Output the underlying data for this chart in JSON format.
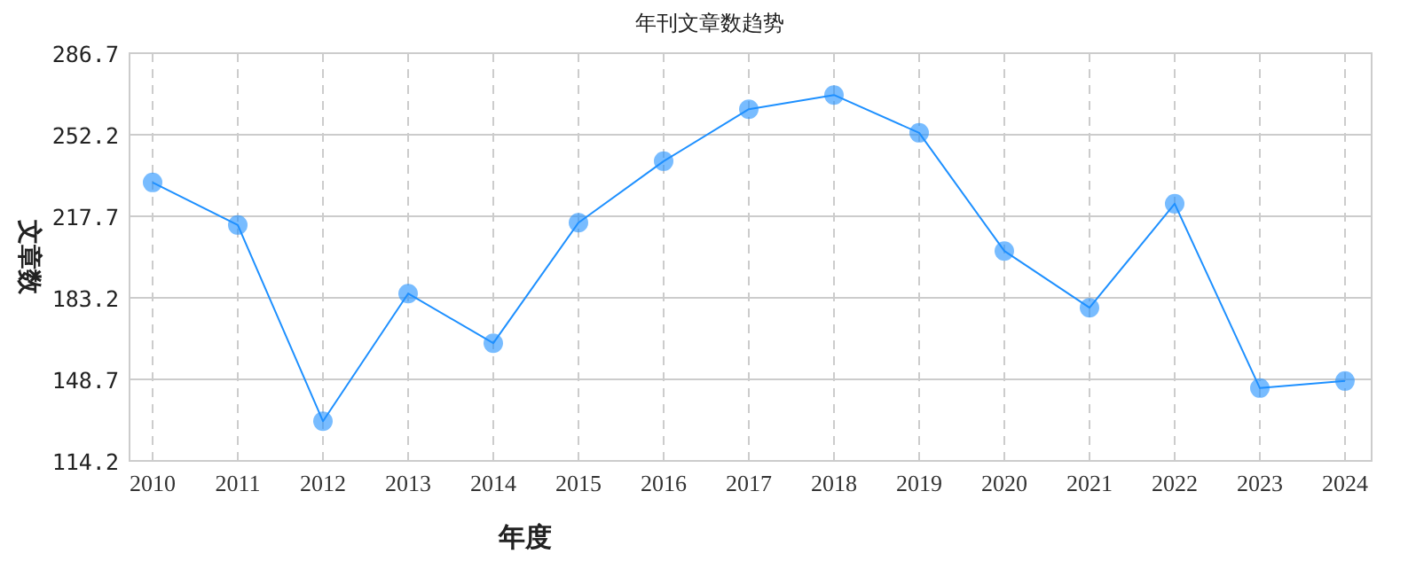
{
  "chart_data": {
    "type": "line",
    "title": "年刊文章数趋势",
    "xlabel": "年度",
    "ylabel": "文章数",
    "categories": [
      "2010",
      "2011",
      "2012",
      "2013",
      "2014",
      "2015",
      "2016",
      "2017",
      "2018",
      "2019",
      "2020",
      "2021",
      "2022",
      "2023",
      "2024"
    ],
    "series": [
      {
        "color": "#1e90ff",
        "values": [
          232,
          214,
          131,
          185,
          164,
          215,
          241,
          263,
          269,
          253,
          203,
          179,
          223,
          145,
          148
        ]
      }
    ],
    "ylim": [
      114.2,
      286.7
    ],
    "yticks": [
      114.2,
      148.7,
      183.2,
      217.7,
      252.2,
      286.7
    ],
    "grid": true,
    "marker": "circle",
    "line_style": "solid"
  }
}
